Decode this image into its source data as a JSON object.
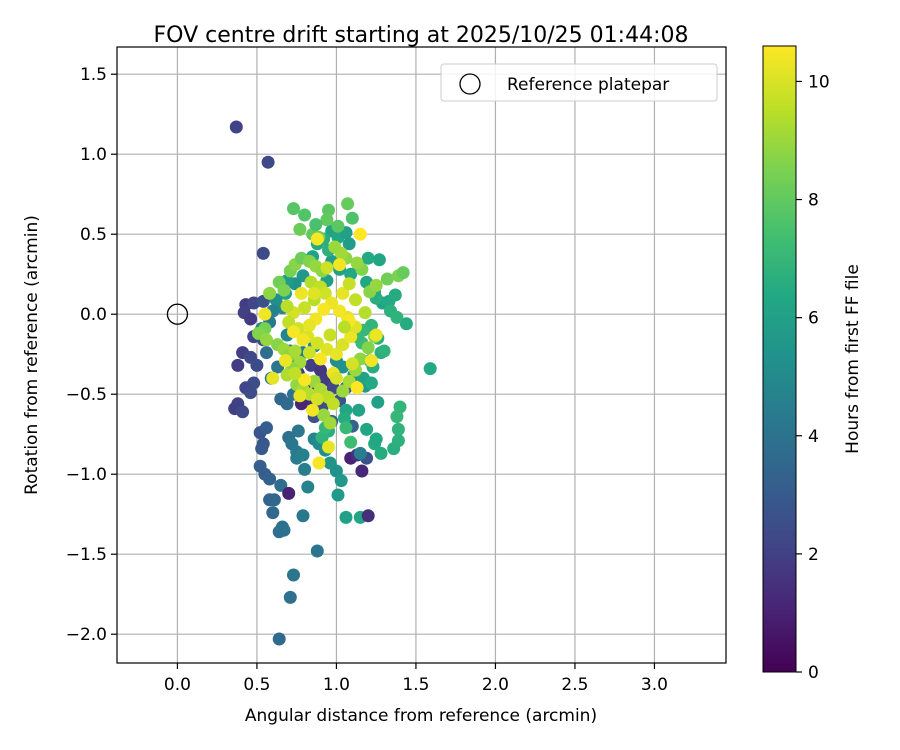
{
  "chart_data": {
    "type": "scatter",
    "title": "FOV centre drift starting at 2025/10/25 01:44:08",
    "xlabel": "Angular distance from reference (arcmin)",
    "ylabel": "Rotation from reference (arcmin)",
    "xlim": [
      -0.38,
      3.45
    ],
    "ylim": [
      -2.18,
      1.67
    ],
    "xticks": [
      0.0,
      0.5,
      1.0,
      1.5,
      2.0,
      2.5,
      3.0
    ],
    "xtick_labels": [
      "0.0",
      "0.5",
      "1.0",
      "1.5",
      "2.0",
      "2.5",
      "3.0"
    ],
    "yticks": [
      -2.0,
      -1.5,
      -1.0,
      -0.5,
      0.0,
      0.5,
      1.0,
      1.5
    ],
    "ytick_labels": [
      "−2.0",
      "−1.5",
      "−1.0",
      "−0.5",
      "0.0",
      "0.5",
      "1.0",
      "1.5"
    ],
    "grid": true,
    "legend": {
      "position": "top-right",
      "entries": [
        "Reference platepar"
      ]
    },
    "reference_point": {
      "x": 0.0,
      "y": 0.0,
      "label": "Reference platepar"
    },
    "colorbar": {
      "label": "Hours from first FF file",
      "range": [
        0,
        10.6
      ],
      "ticks": [
        0,
        2,
        4,
        6,
        8,
        10
      ],
      "tick_labels": [
        "0",
        "2",
        "4",
        "6",
        "8",
        "10"
      ],
      "colormap": "viridis"
    },
    "points": [
      [
        0.37,
        1.17,
        2.1
      ],
      [
        0.57,
        0.95,
        2.3
      ],
      [
        0.54,
        0.38,
        2.4
      ],
      [
        0.43,
        0.06,
        1.9
      ],
      [
        0.48,
        0.07,
        2.2
      ],
      [
        0.54,
        0.08,
        2.6
      ],
      [
        0.42,
        0.01,
        2.0
      ],
      [
        0.46,
        -0.03,
        1.8
      ],
      [
        0.48,
        -0.14,
        2.1
      ],
      [
        0.54,
        -0.16,
        2.5
      ],
      [
        0.41,
        -0.24,
        2.0
      ],
      [
        0.46,
        -0.27,
        2.3
      ],
      [
        0.38,
        -0.32,
        1.9
      ],
      [
        0.5,
        -0.32,
        2.4
      ],
      [
        0.48,
        -0.43,
        2.5
      ],
      [
        0.43,
        -0.46,
        2.2
      ],
      [
        0.46,
        -0.49,
        2.4
      ],
      [
        0.38,
        -0.56,
        2.1
      ],
      [
        0.36,
        -0.59,
        2.0
      ],
      [
        0.41,
        -0.61,
        2.3
      ],
      [
        0.52,
        -0.74,
        2.8
      ],
      [
        0.56,
        -0.71,
        3.1
      ],
      [
        0.54,
        -0.81,
        2.9
      ],
      [
        0.53,
        -0.84,
        3.0
      ],
      [
        0.52,
        -0.95,
        3.2
      ],
      [
        0.55,
        -1.0,
        3.1
      ],
      [
        0.58,
        -1.03,
        3.3
      ],
      [
        0.58,
        -1.16,
        3.4
      ],
      [
        0.61,
        -1.16,
        3.5
      ],
      [
        0.6,
        -1.24,
        3.6
      ],
      [
        0.65,
        -1.07,
        3.8
      ],
      [
        0.64,
        -1.36,
        3.8
      ],
      [
        0.67,
        -1.35,
        3.9
      ],
      [
        0.66,
        -1.33,
        4.0
      ],
      [
        0.7,
        -1.12,
        1.0
      ],
      [
        0.71,
        -1.77,
        3.9
      ],
      [
        0.73,
        -1.63,
        4.1
      ],
      [
        0.64,
        -2.03,
        3.7
      ],
      [
        0.88,
        -1.48,
        4.1
      ],
      [
        0.79,
        -1.26,
        4.2
      ],
      [
        0.7,
        -0.77,
        3.9
      ],
      [
        0.72,
        -0.81,
        4.1
      ],
      [
        0.76,
        -0.73,
        4.2
      ],
      [
        0.75,
        -0.86,
        4.3
      ],
      [
        0.75,
        -0.9,
        4.4
      ],
      [
        0.79,
        -0.88,
        4.6
      ],
      [
        0.8,
        -0.97,
        4.5
      ],
      [
        0.82,
        -1.08,
        4.7
      ],
      [
        0.86,
        -0.78,
        4.8
      ],
      [
        0.89,
        -0.81,
        5.0
      ],
      [
        0.93,
        -0.85,
        5.2
      ],
      [
        0.96,
        -0.93,
        5.5
      ],
      [
        1.0,
        -0.98,
        5.3
      ],
      [
        1.03,
        -1.04,
        5.6
      ],
      [
        1.01,
        -1.13,
        5.7
      ],
      [
        1.06,
        -1.27,
        6.0
      ],
      [
        1.15,
        -1.27,
        6.2
      ],
      [
        1.16,
        -0.98,
        1.2
      ],
      [
        1.09,
        -0.9,
        1.0
      ],
      [
        1.13,
        -0.88,
        1.5
      ],
      [
        1.2,
        -1.26,
        1.4
      ],
      [
        1.19,
        -0.9,
        2.6
      ],
      [
        1.15,
        -0.87,
        4.5
      ],
      [
        0.65,
        -0.53,
        3.5
      ],
      [
        0.69,
        -0.56,
        3.7
      ],
      [
        0.73,
        -0.5,
        3.9
      ],
      [
        0.78,
        -0.56,
        1.2
      ],
      [
        0.83,
        -0.53,
        1.3
      ],
      [
        0.88,
        -0.48,
        1.6
      ],
      [
        0.8,
        -0.44,
        1.5
      ],
      [
        0.76,
        -0.37,
        1.8
      ],
      [
        0.84,
        -0.32,
        2.0
      ],
      [
        0.9,
        -0.35,
        1.7
      ],
      [
        0.93,
        -0.41,
        1.9
      ],
      [
        0.98,
        -0.46,
        2.2
      ],
      [
        0.91,
        -0.58,
        2.4
      ],
      [
        0.86,
        -0.64,
        2.6
      ],
      [
        1.02,
        -0.54,
        2.8
      ],
      [
        1.06,
        -0.46,
        3.0
      ],
      [
        0.97,
        -0.67,
        3.3
      ],
      [
        1.1,
        -0.7,
        3.4
      ],
      [
        0.71,
        -0.23,
        4.0
      ],
      [
        0.79,
        -0.24,
        4.3
      ],
      [
        0.76,
        -0.31,
        4.6
      ],
      [
        0.69,
        -0.13,
        4.8
      ],
      [
        0.86,
        -0.2,
        5.0
      ],
      [
        1.0,
        -0.29,
        5.1
      ],
      [
        1.04,
        -0.33,
        5.3
      ],
      [
        1.11,
        -0.38,
        5.5
      ],
      [
        1.18,
        -0.45,
        5.7
      ],
      [
        1.26,
        -0.55,
        6.0
      ],
      [
        1.14,
        -0.6,
        6.1
      ],
      [
        1.19,
        -0.72,
        6.2
      ],
      [
        1.24,
        -0.81,
        6.4
      ],
      [
        1.28,
        -0.87,
        6.5
      ],
      [
        1.25,
        -0.78,
        6.3
      ],
      [
        1.36,
        -0.84,
        6.6
      ],
      [
        1.39,
        -0.79,
        6.7
      ],
      [
        1.39,
        -0.72,
        6.8
      ],
      [
        1.4,
        -0.58,
        6.9
      ],
      [
        1.38,
        -0.64,
        7.0
      ],
      [
        1.44,
        -0.06,
        6.5
      ],
      [
        1.59,
        -0.34,
        6.4
      ],
      [
        1.28,
        -0.24,
        6.6
      ],
      [
        1.26,
        -0.15,
        6.7
      ],
      [
        1.3,
        -0.23,
        6.8
      ],
      [
        1.21,
        -0.29,
        7.0
      ],
      [
        1.16,
        -0.18,
        7.2
      ],
      [
        1.29,
        0.07,
        6.2
      ],
      [
        1.33,
        0.08,
        6.4
      ],
      [
        1.25,
        0.1,
        6.6
      ],
      [
        1.37,
        0.12,
        6.5
      ],
      [
        1.27,
        0.34,
        6.2
      ],
      [
        1.2,
        0.35,
        6.4
      ],
      [
        1.14,
        0.3,
        6.6
      ],
      [
        1.09,
        0.25,
        6.3
      ],
      [
        1.02,
        0.28,
        6.0
      ],
      [
        0.97,
        0.33,
        5.8
      ],
      [
        0.94,
        0.21,
        5.9
      ],
      [
        0.85,
        0.36,
        6.1
      ],
      [
        0.79,
        0.24,
        5.6
      ],
      [
        0.74,
        0.19,
        5.4
      ],
      [
        0.69,
        0.21,
        5.8
      ],
      [
        0.68,
        0.13,
        6.0
      ],
      [
        0.62,
        0.09,
        5.2
      ],
      [
        0.66,
        0.04,
        5.0
      ],
      [
        0.6,
        0.02,
        4.6
      ],
      [
        0.58,
        -0.05,
        4.3
      ],
      [
        0.53,
        -0.09,
        4.9
      ],
      [
        0.56,
        -0.24,
        3.8
      ],
      [
        0.63,
        -0.33,
        4.1
      ],
      [
        0.59,
        -0.4,
        4.4
      ],
      [
        0.97,
        0.52,
        6.1
      ],
      [
        1.01,
        0.48,
        6.3
      ],
      [
        1.06,
        0.51,
        6.0
      ],
      [
        1.08,
        0.44,
        5.8
      ],
      [
        0.88,
        0.44,
        6.4
      ],
      [
        0.92,
        0.47,
        6.6
      ],
      [
        0.95,
        0.4,
        6.7
      ],
      [
        1.19,
        0.2,
        6.3
      ],
      [
        1.24,
        0.14,
        6.5
      ],
      [
        1.34,
        0.02,
        6.7
      ],
      [
        1.38,
        -0.02,
        6.8
      ],
      [
        1.22,
        -0.07,
        6.9
      ],
      [
        1.17,
        -0.1,
        7.0
      ],
      [
        1.13,
        -0.14,
        7.1
      ],
      [
        1.17,
        -0.4,
        6.1
      ],
      [
        1.22,
        -0.43,
        6.4
      ],
      [
        1.23,
        -0.33,
        6.6
      ],
      [
        1.06,
        -0.6,
        6.3
      ],
      [
        1.05,
        -0.65,
        6.5
      ],
      [
        0.95,
        -0.73,
        6.6
      ],
      [
        0.91,
        -0.77,
        6.8
      ],
      [
        0.93,
        -0.71,
        7.0
      ],
      [
        1.06,
        -0.71,
        7.1
      ],
      [
        1.09,
        -0.8,
        7.3
      ],
      [
        0.73,
        0.66,
        7.8
      ],
      [
        0.8,
        0.62,
        7.7
      ],
      [
        0.95,
        0.65,
        7.9
      ],
      [
        0.94,
        0.59,
        8.0
      ],
      [
        1.07,
        0.69,
        8.1
      ],
      [
        1.1,
        0.6,
        7.6
      ],
      [
        0.77,
        0.53,
        8.2
      ],
      [
        0.85,
        0.5,
        8.0
      ],
      [
        0.87,
        0.56,
        7.5
      ],
      [
        0.89,
        0.48,
        8.3
      ],
      [
        1.01,
        0.55,
        7.9
      ],
      [
        0.64,
        0.2,
        8.3
      ],
      [
        0.67,
        0.15,
        8.5
      ],
      [
        0.58,
        0.13,
        8.8
      ],
      [
        0.71,
        0.27,
        8.4
      ],
      [
        0.74,
        0.31,
        8.7
      ],
      [
        0.78,
        0.35,
        8.2
      ],
      [
        0.83,
        0.33,
        8.6
      ],
      [
        0.87,
        0.3,
        8.9
      ],
      [
        0.91,
        0.27,
        8.8
      ],
      [
        0.55,
        -0.09,
        8.4
      ],
      [
        0.51,
        -0.12,
        8.6
      ],
      [
        0.56,
        -0.16,
        8.9
      ],
      [
        0.63,
        -0.19,
        8.7
      ],
      [
        0.67,
        -0.22,
        9.0
      ],
      [
        0.7,
        -0.26,
        8.8
      ],
      [
        0.74,
        -0.23,
        9.2
      ],
      [
        0.77,
        -0.3,
        9.1
      ],
      [
        0.72,
        -0.34,
        8.8
      ],
      [
        0.69,
        -0.38,
        9.3
      ],
      [
        0.75,
        -0.44,
        8.9
      ],
      [
        0.79,
        -0.47,
        9.2
      ],
      [
        0.83,
        -0.5,
        9.4
      ],
      [
        0.86,
        -0.42,
        9.0
      ],
      [
        0.9,
        -0.47,
        9.3
      ],
      [
        0.95,
        -0.52,
        9.5
      ],
      [
        0.98,
        -0.56,
        9.6
      ],
      [
        0.92,
        -0.63,
        8.9
      ],
      [
        0.96,
        -0.68,
        9.1
      ],
      [
        1.04,
        -0.48,
        9.0
      ],
      [
        1.08,
        -0.42,
        9.2
      ],
      [
        1.12,
        -0.35,
        9.0
      ],
      [
        1.15,
        -0.28,
        8.8
      ],
      [
        1.2,
        -0.21,
        8.6
      ],
      [
        1.24,
        -0.14,
        8.8
      ],
      [
        1.21,
        0.14,
        8.7
      ],
      [
        1.25,
        0.18,
        8.9
      ],
      [
        1.32,
        0.22,
        8.3
      ],
      [
        1.39,
        0.24,
        8.5
      ],
      [
        1.42,
        0.26,
        8.1
      ],
      [
        1.16,
        0.28,
        8.6
      ],
      [
        1.13,
        0.32,
        8.9
      ],
      [
        1.06,
        0.35,
        8.8
      ],
      [
        1.03,
        0.38,
        9.1
      ],
      [
        0.99,
        0.42,
        9.0
      ],
      [
        0.84,
        0.2,
        9.4
      ],
      [
        0.9,
        0.17,
        9.6
      ],
      [
        0.93,
        0.13,
        9.8
      ],
      [
        0.86,
        0.09,
        9.5
      ],
      [
        0.8,
        0.04,
        9.7
      ],
      [
        0.73,
        0.01,
        9.9
      ],
      [
        0.7,
        -0.05,
        9.6
      ],
      [
        0.76,
        -0.09,
        9.8
      ],
      [
        0.82,
        -0.14,
        10.0
      ],
      [
        0.88,
        -0.18,
        9.9
      ],
      [
        0.94,
        -0.22,
        10.1
      ],
      [
        1.0,
        -0.25,
        10.2
      ],
      [
        1.04,
        -0.19,
        10.0
      ],
      [
        1.09,
        -0.14,
        10.3
      ],
      [
        1.12,
        -0.08,
        10.1
      ],
      [
        1.07,
        -0.02,
        10.2
      ],
      [
        1.02,
        0.02,
        10.4
      ],
      [
        0.97,
        0.07,
        10.3
      ],
      [
        0.92,
        0.03,
        10.5
      ],
      [
        0.87,
        -0.03,
        10.4
      ],
      [
        0.83,
        -0.07,
        10.2
      ],
      [
        0.79,
        -0.16,
        10.4
      ],
      [
        0.73,
        -0.11,
        10.5
      ],
      [
        0.68,
        -0.29,
        10.3
      ],
      [
        0.6,
        -0.4,
        10.2
      ],
      [
        0.55,
        0.0,
        10.4
      ],
      [
        0.88,
        0.47,
        10.5
      ],
      [
        1.02,
        0.31,
        10.4
      ],
      [
        1.15,
        0.5,
        10.6
      ],
      [
        1.08,
        -0.04,
        10.5
      ],
      [
        1.25,
        -0.13,
        10.3
      ],
      [
        1.22,
        -0.29,
        10.4
      ],
      [
        1.13,
        -0.46,
        10.6
      ],
      [
        0.89,
        -0.93,
        10.5
      ],
      [
        0.95,
        -0.83,
        10.2
      ],
      [
        0.85,
        -0.6,
        10.4
      ],
      [
        0.77,
        -0.51,
        10.2
      ],
      [
        0.8,
        -0.41,
        10.6
      ],
      [
        0.9,
        -0.28,
        10.5
      ],
      [
        0.98,
        -0.37,
        10.3
      ],
      [
        1.04,
        0.13,
        10.2
      ],
      [
        0.86,
        0.13,
        10.1
      ],
      [
        0.78,
        0.13,
        10.3
      ],
      [
        0.94,
        0.29,
        9.8
      ],
      [
        1.08,
        0.19,
        9.7
      ],
      [
        1.12,
        0.09,
        9.6
      ],
      [
        1.18,
        0.01,
        9.4
      ],
      [
        1.05,
        -0.08,
        9.5
      ],
      [
        0.96,
        -0.13,
        9.7
      ],
      [
        0.83,
        -0.24,
        9.8
      ],
      [
        0.74,
        -0.37,
        9.6
      ],
      [
        0.88,
        -0.53,
        9.9
      ],
      [
        1.0,
        -0.4,
        10.0
      ],
      [
        1.1,
        -0.31,
        9.9
      ],
      [
        0.69,
        0.05,
        9.5
      ]
    ]
  }
}
